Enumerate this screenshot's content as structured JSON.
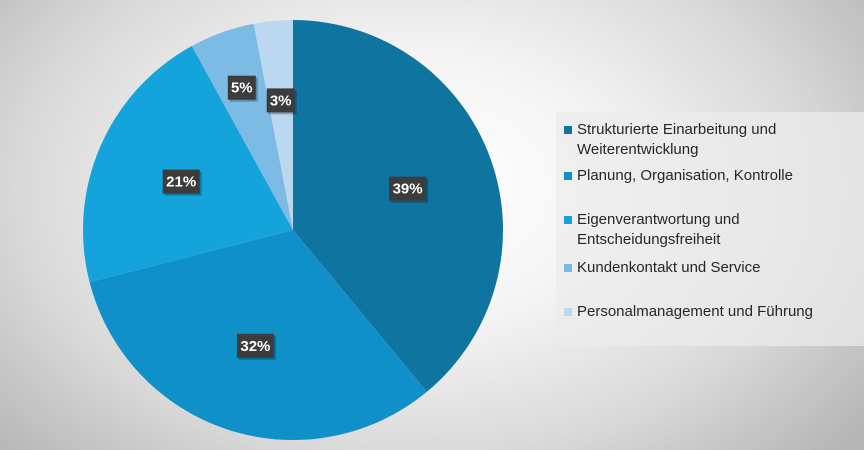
{
  "chart_data": {
    "type": "pie",
    "title": "",
    "slices": [
      {
        "label": "Strukturierte Einarbeitung und Weiterentwicklung",
        "value": 39,
        "display": "39%",
        "color": "#0f74a0"
      },
      {
        "label": "Planung, Organisation, Kontrolle",
        "value": 32,
        "display": "32%",
        "color": "#1090c8"
      },
      {
        "label": "Eigenverantwortung und Entscheidungsfreiheit",
        "value": 21,
        "display": "21%",
        "color": "#14a3db"
      },
      {
        "label": "Kundenkontakt und Service",
        "value": 5,
        "display": "5%",
        "color": "#7cbbe4"
      },
      {
        "label": "Personalmanagement und Führung",
        "value": 3,
        "display": "3%",
        "color": "#bcd8f0"
      }
    ],
    "start_angle_deg": 0,
    "direction": "clockwise",
    "data_labels": "percent",
    "legend": "right"
  }
}
